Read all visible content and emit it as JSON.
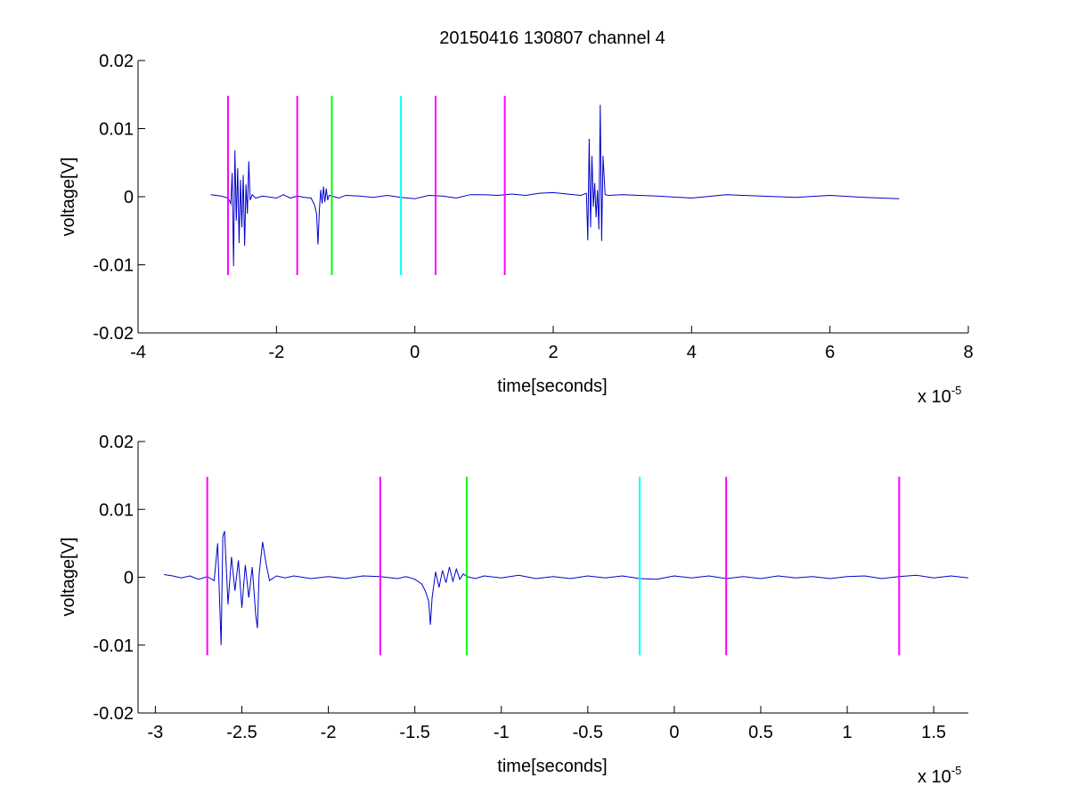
{
  "figure": {
    "title": "20150416 130807 channel 4",
    "background": "#ffffff"
  },
  "chart_data": [
    {
      "type": "line",
      "title": "20150416 130807 channel 4",
      "xlabel": "time[seconds]",
      "ylabel": "voltage[V]",
      "x_exponent_label": "x 10",
      "x_exponent": "-5",
      "xlim": [
        -4,
        8
      ],
      "ylim": [
        -0.02,
        0.02
      ],
      "xticks": [
        -4,
        -2,
        0,
        2,
        4,
        6,
        8
      ],
      "xtick_labels": [
        "-4",
        "-2",
        "0",
        "2",
        "4",
        "6",
        "8"
      ],
      "yticks": [
        -0.02,
        -0.01,
        0,
        0.01,
        0.02
      ],
      "ytick_labels": [
        "-0.02",
        "-0.01",
        "0",
        "0.01",
        "0.02"
      ],
      "grid": false,
      "series": [
        {
          "color": "#0000cc",
          "x": [
            -2.95,
            -2.8,
            -2.7,
            -2.66,
            -2.64,
            -2.62,
            -2.6,
            -2.58,
            -2.56,
            -2.54,
            -2.52,
            -2.5,
            -2.48,
            -2.46,
            -2.44,
            -2.42,
            -2.4,
            -2.38,
            -2.35,
            -2.3,
            -2.2,
            -2.0,
            -1.9,
            -1.8,
            -1.7,
            -1.6,
            -1.5,
            -1.45,
            -1.42,
            -1.4,
            -1.38,
            -1.36,
            -1.34,
            -1.32,
            -1.3,
            -1.28,
            -1.26,
            -1.24,
            -1.2,
            -1.1,
            -1.0,
            -0.8,
            -0.6,
            -0.4,
            -0.2,
            0.0,
            0.2,
            0.4,
            0.6,
            0.8,
            1.0,
            1.2,
            1.4,
            1.6,
            1.8,
            2.0,
            2.2,
            2.4,
            2.48,
            2.5,
            2.52,
            2.54,
            2.56,
            2.58,
            2.6,
            2.62,
            2.64,
            2.66,
            2.68,
            2.7,
            2.72,
            2.75,
            2.8,
            3.0,
            3.5,
            4.0,
            4.5,
            5.0,
            5.5,
            6.0,
            6.5,
            7.0
          ],
          "y": [
            0.0003,
            0.0001,
            -0.0002,
            -0.001,
            0.0035,
            -0.0102,
            0.0068,
            -0.0035,
            0.0042,
            -0.0068,
            0.0025,
            -0.0045,
            0.0032,
            -0.0072,
            0.0018,
            -0.0025,
            0.0052,
            -0.0005,
            0.0003,
            -0.0002,
            0.0001,
            -0.0002,
            0.0003,
            -0.0002,
            0.0001,
            -0.0001,
            -0.0002,
            -0.0012,
            -0.0025,
            -0.007,
            -0.002,
            0.001,
            -0.001,
            0.0015,
            -0.0008,
            0.0012,
            -0.0005,
            0.0002,
            0.0001,
            -0.0002,
            0.0002,
            0.0001,
            -0.0001,
            0.0002,
            -0.0001,
            -0.0003,
            0.0002,
            0.0001,
            -0.0002,
            0.0003,
            0.0003,
            0.0002,
            0.0004,
            0.0002,
            0.0005,
            0.0006,
            0.0004,
            0.0002,
            0.0005,
            -0.0064,
            0.0085,
            -0.0045,
            0.006,
            -0.0015,
            0.002,
            -0.003,
            0.001,
            -0.0048,
            0.0135,
            -0.0065,
            0.006,
            0.0003,
            0.0002,
            0.0003,
            0.0001,
            -0.0002,
            0.0003,
            0.0001,
            -0.0001,
            0.0002,
            -0.0001,
            -0.0003
          ]
        }
      ],
      "markers": [
        {
          "x": -2.7,
          "y_range": [
            -0.0115,
            0.0148
          ],
          "color": "#ff00ff"
        },
        {
          "x": -1.7,
          "y_range": [
            -0.0115,
            0.0148
          ],
          "color": "#ff00ff"
        },
        {
          "x": -1.2,
          "y_range": [
            -0.0115,
            0.0148
          ],
          "color": "#00ff00"
        },
        {
          "x": -0.2,
          "y_range": [
            -0.0115,
            0.0148
          ],
          "color": "#00ffff"
        },
        {
          "x": 0.3,
          "y_range": [
            -0.0115,
            0.0148
          ],
          "color": "#ff00ff"
        },
        {
          "x": 1.3,
          "y_range": [
            -0.0115,
            0.0148
          ],
          "color": "#ff00ff"
        }
      ]
    },
    {
      "type": "line",
      "title": "",
      "xlabel": "time[seconds]",
      "ylabel": "voltage[V]",
      "x_exponent_label": "x 10",
      "x_exponent": "-5",
      "xlim": [
        -3.1,
        1.7
      ],
      "ylim": [
        -0.02,
        0.02
      ],
      "xticks": [
        -3,
        -2.5,
        -2,
        -1.5,
        -1,
        -0.5,
        0,
        0.5,
        1,
        1.5
      ],
      "xtick_labels": [
        "-3",
        "-2.5",
        "-2",
        "-1.5",
        "-1",
        "-0.5",
        "0",
        "0.5",
        "1",
        "1.5"
      ],
      "yticks": [
        -0.02,
        -0.01,
        0,
        0.01,
        0.02
      ],
      "ytick_labels": [
        "-0.02",
        "-0.01",
        "0",
        "0.01",
        "0.02"
      ],
      "grid": false,
      "series": [
        {
          "color": "#0000cc",
          "x": [
            -2.95,
            -2.9,
            -2.85,
            -2.8,
            -2.75,
            -2.7,
            -2.66,
            -2.64,
            -2.62,
            -2.61,
            -2.6,
            -2.58,
            -2.56,
            -2.54,
            -2.52,
            -2.5,
            -2.48,
            -2.46,
            -2.44,
            -2.42,
            -2.41,
            -2.4,
            -2.38,
            -2.36,
            -2.34,
            -2.3,
            -2.25,
            -2.2,
            -2.1,
            -2.0,
            -1.9,
            -1.8,
            -1.7,
            -1.6,
            -1.55,
            -1.5,
            -1.46,
            -1.44,
            -1.42,
            -1.41,
            -1.4,
            -1.38,
            -1.36,
            -1.34,
            -1.32,
            -1.3,
            -1.28,
            -1.26,
            -1.24,
            -1.22,
            -1.2,
            -1.15,
            -1.1,
            -1.0,
            -0.9,
            -0.8,
            -0.7,
            -0.6,
            -0.5,
            -0.4,
            -0.3,
            -0.2,
            -0.1,
            0.0,
            0.1,
            0.2,
            0.3,
            0.4,
            0.5,
            0.6,
            0.7,
            0.8,
            0.9,
            1.0,
            1.1,
            1.2,
            1.3,
            1.4,
            1.5,
            1.6,
            1.7
          ],
          "y": [
            0.0004,
            0.0002,
            -0.0001,
            0.0002,
            -0.0003,
            0.0001,
            -0.0005,
            0.005,
            -0.01,
            0.006,
            0.0068,
            -0.004,
            0.003,
            -0.002,
            0.0025,
            -0.0045,
            0.0018,
            -0.003,
            0.0015,
            -0.0055,
            -0.0075,
            0.0005,
            0.0052,
            0.002,
            -0.0005,
            0.0002,
            -0.0001,
            0.0002,
            -0.0002,
            0.0001,
            -0.0002,
            0.0002,
            0.0001,
            -0.0002,
            0.0001,
            -0.0003,
            -0.001,
            -0.002,
            -0.0035,
            -0.007,
            -0.003,
            0.0008,
            -0.0015,
            0.001,
            -0.0008,
            0.0015,
            -0.0006,
            0.0012,
            -0.0003,
            0.0005,
            0.0001,
            -0.0002,
            0.0002,
            -0.0001,
            0.0003,
            -0.0002,
            0.0001,
            -0.0002,
            0.0002,
            -0.0001,
            0.0002,
            -0.0002,
            -0.0003,
            0.0002,
            -0.0001,
            0.0002,
            -0.0002,
            0.0001,
            -0.0002,
            0.0002,
            -0.0001,
            0.0001,
            -0.0002,
            0.0001,
            0.0002,
            -0.0002,
            0.0001,
            0.0003,
            -0.0001,
            0.0002,
            -0.0001
          ]
        }
      ],
      "markers": [
        {
          "x": -2.7,
          "y_range": [
            -0.0115,
            0.0148
          ],
          "color": "#ff00ff"
        },
        {
          "x": -1.7,
          "y_range": [
            -0.0115,
            0.0148
          ],
          "color": "#ff00ff"
        },
        {
          "x": -1.2,
          "y_range": [
            -0.0115,
            0.0148
          ],
          "color": "#00ff00"
        },
        {
          "x": -0.2,
          "y_range": [
            -0.0115,
            0.0148
          ],
          "color": "#00ffff"
        },
        {
          "x": 0.3,
          "y_range": [
            -0.0115,
            0.0148
          ],
          "color": "#ff00ff"
        },
        {
          "x": 1.3,
          "y_range": [
            -0.0115,
            0.0148
          ],
          "color": "#ff00ff"
        }
      ]
    }
  ]
}
